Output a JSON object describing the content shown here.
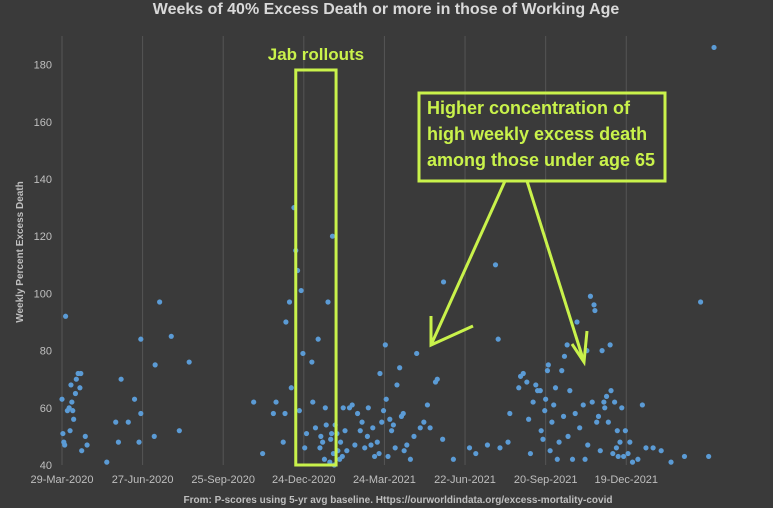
{
  "chart_data": {
    "type": "scatter",
    "title": "Weeks of 40% Excess Death or more in those of Working Age",
    "xlabel": "",
    "ylabel": "Weekly Percent Excess Death",
    "source": "From: P-scores using 5-yr avg baseline. Https://ourworldindata.org/excess-mortality-covid",
    "ylim": [
      40,
      190
    ],
    "yticks": [
      40,
      60,
      80,
      100,
      120,
      140,
      160,
      180
    ],
    "xlim": [
      "2020-03-29",
      "2022-04-25"
    ],
    "xticks": [
      "29-Mar-2020",
      "27-Jun-2020",
      "25-Sep-2020",
      "24-Dec-2020",
      "24-Mar-2021",
      "22-Jun-2021",
      "20-Sep-2021",
      "19-Dec-2021"
    ],
    "grid": "vertical",
    "annotations": {
      "rollout_label": "Jab rollouts",
      "rollout_range": [
        "2020-12-15",
        "2021-01-29"
      ],
      "callout_lines": [
        "Higher concentration of",
        "high weekly excess death",
        "among those under age 65"
      ]
    },
    "points": [
      [
        "2020-03-29",
        63
      ],
      [
        "2020-03-30",
        51
      ],
      [
        "2020-03-31",
        48
      ],
      [
        "2020-04-01",
        47
      ],
      [
        "2020-04-02",
        92
      ],
      [
        "2020-04-04",
        59
      ],
      [
        "2020-04-06",
        60
      ],
      [
        "2020-04-07",
        52
      ],
      [
        "2020-04-08",
        68
      ],
      [
        "2020-04-09",
        62
      ],
      [
        "2020-04-10",
        59
      ],
      [
        "2020-04-11",
        56
      ],
      [
        "2020-04-13",
        65
      ],
      [
        "2020-04-14",
        70
      ],
      [
        "2020-04-16",
        72
      ],
      [
        "2020-04-18",
        67
      ],
      [
        "2020-04-19",
        72
      ],
      [
        "2020-04-20",
        45
      ],
      [
        "2020-04-24",
        50
      ],
      [
        "2020-04-26",
        47
      ],
      [
        "2020-05-18",
        41
      ],
      [
        "2020-05-28",
        55
      ],
      [
        "2020-05-31",
        48
      ],
      [
        "2020-06-03",
        70
      ],
      [
        "2020-06-11",
        55
      ],
      [
        "2020-06-18",
        63
      ],
      [
        "2020-06-23",
        48
      ],
      [
        "2020-06-25",
        58
      ],
      [
        "2020-06-25",
        84
      ],
      [
        "2020-07-10",
        50
      ],
      [
        "2020-07-11",
        75
      ],
      [
        "2020-07-16",
        97
      ],
      [
        "2020-07-29",
        85
      ],
      [
        "2020-08-07",
        52
      ],
      [
        "2020-08-18",
        76
      ],
      [
        "2020-10-29",
        62
      ],
      [
        "2020-11-08",
        44
      ],
      [
        "2020-11-20",
        58
      ],
      [
        "2020-11-23",
        62
      ],
      [
        "2020-12-01",
        48
      ],
      [
        "2020-12-03",
        58
      ],
      [
        "2020-12-04",
        90
      ],
      [
        "2020-12-08",
        97
      ],
      [
        "2020-12-10",
        67
      ],
      [
        "2020-12-13",
        130
      ],
      [
        "2020-12-15",
        115
      ],
      [
        "2020-12-17",
        108
      ],
      [
        "2020-12-19",
        59
      ],
      [
        "2020-12-21",
        101
      ],
      [
        "2020-12-23",
        79
      ],
      [
        "2020-12-25",
        46
      ],
      [
        "2020-12-27",
        51
      ],
      [
        "2021-01-02",
        76
      ],
      [
        "2021-01-03",
        62
      ],
      [
        "2021-01-06",
        53
      ],
      [
        "2021-01-09",
        84
      ],
      [
        "2021-01-11",
        46
      ],
      [
        "2021-01-12",
        50
      ],
      [
        "2021-01-14",
        48
      ],
      [
        "2021-01-16",
        42
      ],
      [
        "2021-01-17",
        60
      ],
      [
        "2021-01-18",
        54
      ],
      [
        "2021-01-20",
        97
      ],
      [
        "2021-01-22",
        41
      ],
      [
        "2021-01-23",
        49
      ],
      [
        "2021-01-24",
        51
      ],
      [
        "2021-01-25",
        120
      ],
      [
        "2021-01-26",
        44
      ],
      [
        "2021-01-27",
        40
      ],
      [
        "2021-01-28",
        54
      ],
      [
        "2021-01-30",
        51
      ],
      [
        "2021-01-31",
        45
      ],
      [
        "2021-02-02",
        42
      ],
      [
        "2021-02-03",
        48
      ],
      [
        "2021-02-05",
        43
      ],
      [
        "2021-02-06",
        60
      ],
      [
        "2021-02-08",
        52
      ],
      [
        "2021-02-10",
        45
      ],
      [
        "2021-02-13",
        60
      ],
      [
        "2021-02-16",
        61
      ],
      [
        "2021-02-19",
        47
      ],
      [
        "2021-02-22",
        58
      ],
      [
        "2021-02-25",
        52
      ],
      [
        "2021-02-27",
        55
      ],
      [
        "2021-03-02",
        46
      ],
      [
        "2021-03-05",
        50
      ],
      [
        "2021-03-06",
        60
      ],
      [
        "2021-03-09",
        47
      ],
      [
        "2021-03-11",
        53
      ],
      [
        "2021-03-13",
        43
      ],
      [
        "2021-03-16",
        48
      ],
      [
        "2021-03-18",
        44
      ],
      [
        "2021-03-19",
        72
      ],
      [
        "2021-03-21",
        55
      ],
      [
        "2021-03-23",
        59
      ],
      [
        "2021-03-25",
        82
      ],
      [
        "2021-03-26",
        63
      ],
      [
        "2021-03-28",
        43
      ],
      [
        "2021-03-30",
        56
      ],
      [
        "2021-04-01",
        52
      ],
      [
        "2021-04-03",
        54
      ],
      [
        "2021-04-05",
        46
      ],
      [
        "2021-04-07",
        68
      ],
      [
        "2021-04-10",
        74
      ],
      [
        "2021-04-12",
        57
      ],
      [
        "2021-04-14",
        58
      ],
      [
        "2021-04-15",
        45
      ],
      [
        "2021-04-18",
        47
      ],
      [
        "2021-04-22",
        42
      ],
      [
        "2021-04-26",
        50
      ],
      [
        "2021-04-29",
        79
      ],
      [
        "2021-05-03",
        53
      ],
      [
        "2021-05-07",
        55
      ],
      [
        "2021-05-11",
        61
      ],
      [
        "2021-05-14",
        53
      ],
      [
        "2021-05-20",
        69
      ],
      [
        "2021-05-22",
        70
      ],
      [
        "2021-05-28",
        49
      ],
      [
        "2021-05-29",
        104
      ],
      [
        "2021-06-09",
        42
      ],
      [
        "2021-06-27",
        46
      ],
      [
        "2021-07-04",
        44
      ],
      [
        "2021-07-17",
        47
      ],
      [
        "2021-07-26",
        110
      ],
      [
        "2021-07-29",
        84
      ],
      [
        "2021-07-31",
        46
      ],
      [
        "2021-08-09",
        48
      ],
      [
        "2021-08-11",
        58
      ],
      [
        "2021-08-21",
        67
      ],
      [
        "2021-08-23",
        71
      ],
      [
        "2021-08-26",
        72
      ],
      [
        "2021-08-30",
        69
      ],
      [
        "2021-09-01",
        56
      ],
      [
        "2021-09-03",
        44
      ],
      [
        "2021-09-06",
        62
      ],
      [
        "2021-09-09",
        68
      ],
      [
        "2021-09-11",
        66
      ],
      [
        "2021-09-14",
        66
      ],
      [
        "2021-09-15",
        52
      ],
      [
        "2021-09-17",
        49
      ],
      [
        "2021-09-19",
        59
      ],
      [
        "2021-09-20",
        63
      ],
      [
        "2021-09-22",
        73
      ],
      [
        "2021-09-23",
        75
      ],
      [
        "2021-09-25",
        45
      ],
      [
        "2021-09-27",
        55
      ],
      [
        "2021-09-29",
        61
      ],
      [
        "2021-10-01",
        67
      ],
      [
        "2021-10-03",
        42
      ],
      [
        "2021-10-05",
        48
      ],
      [
        "2021-10-08",
        73
      ],
      [
        "2021-10-10",
        57
      ],
      [
        "2021-10-11",
        78
      ],
      [
        "2021-10-14",
        82
      ],
      [
        "2021-10-15",
        50
      ],
      [
        "2021-10-17",
        66
      ],
      [
        "2021-10-20",
        42
      ],
      [
        "2021-10-23",
        58
      ],
      [
        "2021-10-25",
        90
      ],
      [
        "2021-10-28",
        53
      ],
      [
        "2021-11-01",
        61
      ],
      [
        "2021-11-03",
        42
      ],
      [
        "2021-11-05",
        80
      ],
      [
        "2021-11-06",
        47
      ],
      [
        "2021-11-09",
        99
      ],
      [
        "2021-11-11",
        62
      ],
      [
        "2021-11-13",
        96
      ],
      [
        "2021-11-14",
        94
      ],
      [
        "2021-11-16",
        55
      ],
      [
        "2021-11-18",
        57
      ],
      [
        "2021-11-20",
        45
      ],
      [
        "2021-11-22",
        80
      ],
      [
        "2021-11-24",
        62
      ],
      [
        "2021-11-25",
        60
      ],
      [
        "2021-11-27",
        64
      ],
      [
        "2021-11-29",
        55
      ],
      [
        "2021-12-01",
        82
      ],
      [
        "2021-12-02",
        66
      ],
      [
        "2021-12-04",
        44
      ],
      [
        "2021-12-06",
        62
      ],
      [
        "2021-12-08",
        46
      ],
      [
        "2021-12-09",
        52
      ],
      [
        "2021-12-10",
        43
      ],
      [
        "2021-12-12",
        48
      ],
      [
        "2021-12-14",
        60
      ],
      [
        "2021-12-16",
        43
      ],
      [
        "2021-12-18",
        52
      ],
      [
        "2021-12-21",
        44
      ],
      [
        "2021-12-23",
        48
      ],
      [
        "2021-12-26",
        41
      ],
      [
        "2022-01-01",
        42
      ],
      [
        "2022-01-06",
        61
      ],
      [
        "2022-01-10",
        46
      ],
      [
        "2022-01-18",
        46
      ],
      [
        "2022-01-27",
        45
      ],
      [
        "2022-02-07",
        41
      ],
      [
        "2022-02-22",
        43
      ],
      [
        "2022-03-12",
        97
      ],
      [
        "2022-03-21",
        43
      ],
      [
        "2022-03-27",
        186
      ]
    ]
  }
}
